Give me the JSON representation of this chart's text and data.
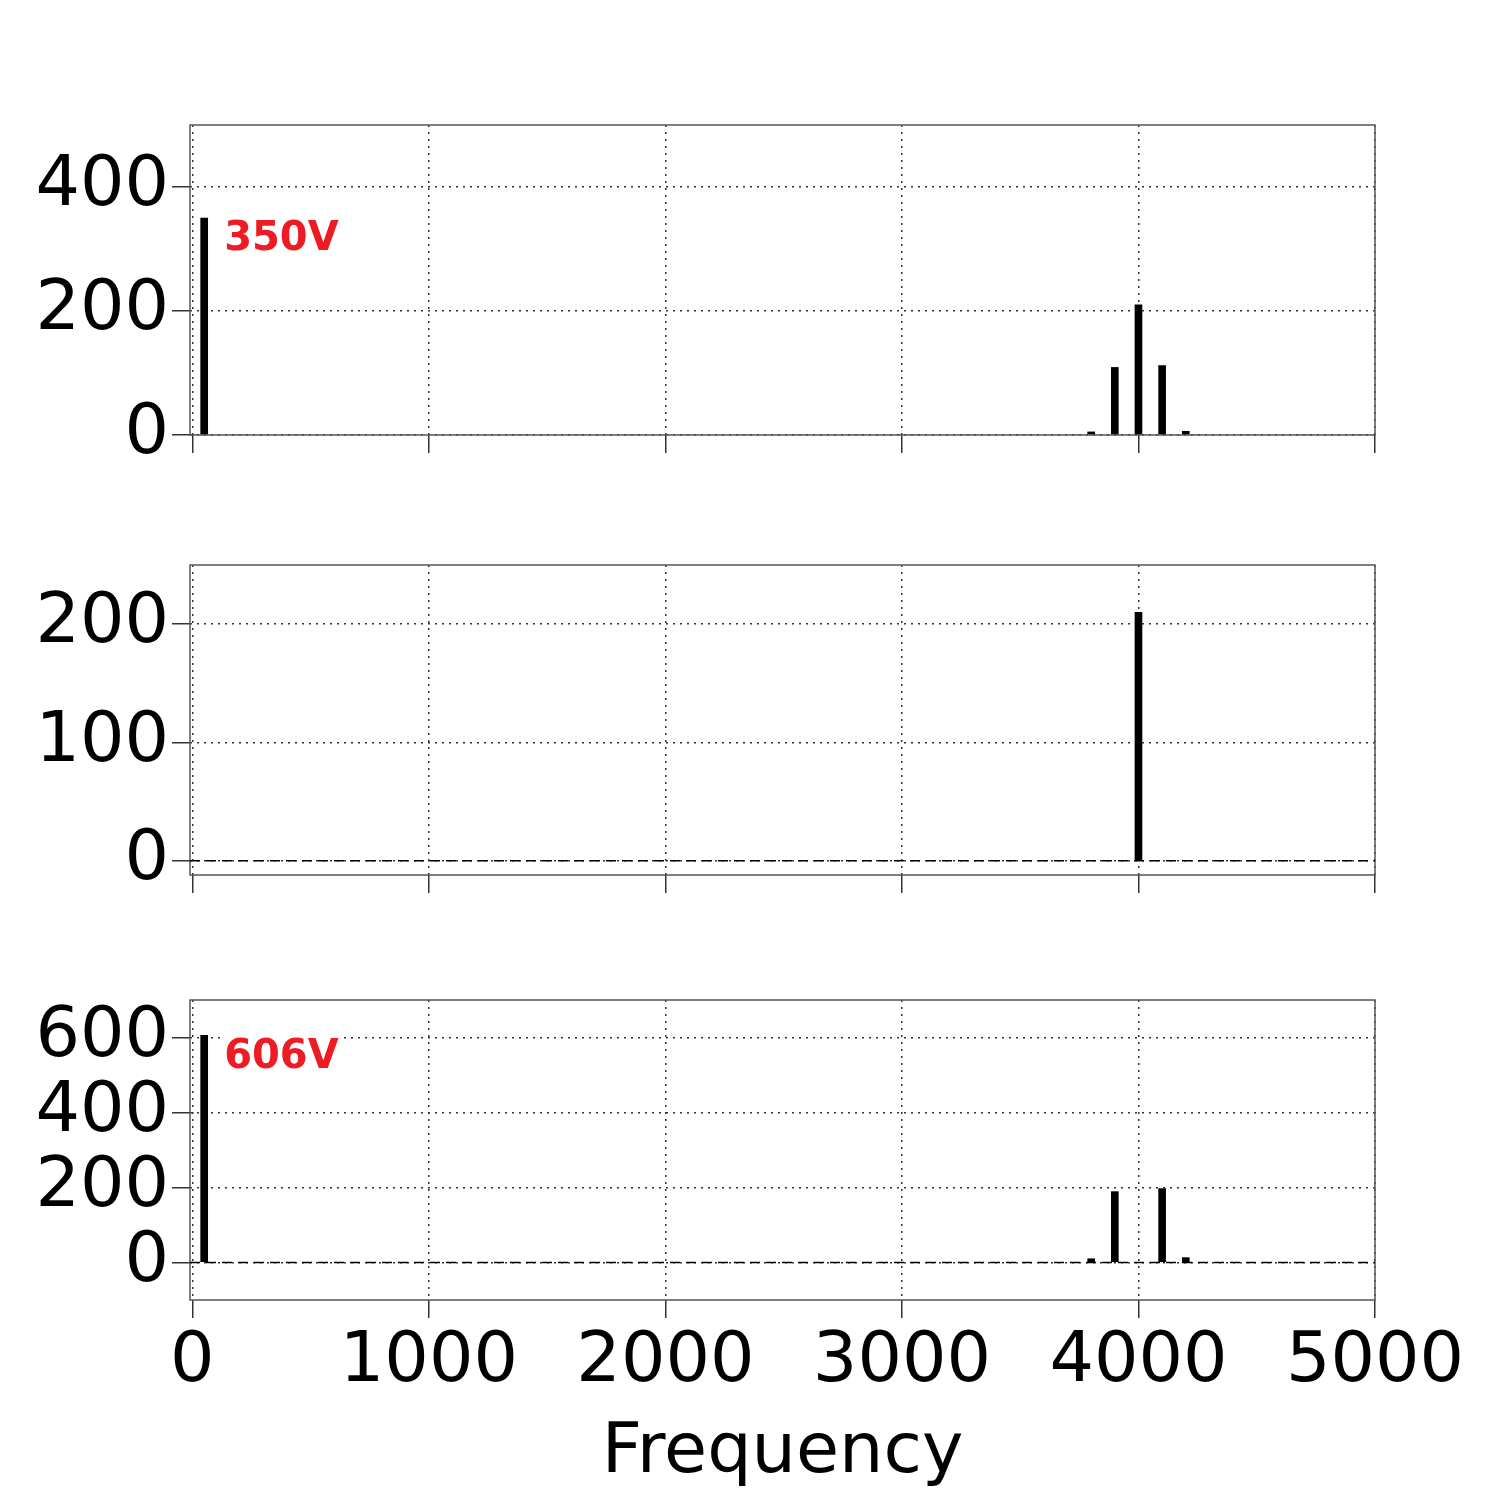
{
  "chart_data": [
    {
      "type": "bar",
      "x": [
        50,
        3800,
        3900,
        4000,
        4100,
        4200
      ],
      "values": [
        350,
        5,
        109,
        210,
        112,
        6
      ],
      "color": "#000000",
      "xlim": [
        -10,
        5000
      ],
      "xticks": [
        0,
        1000,
        2000,
        3000,
        4000,
        5000
      ],
      "ylim": [
        0,
        500
      ],
      "yticks": [
        0,
        200,
        400
      ],
      "grid": true,
      "legend": false,
      "tick_labels": "y",
      "annotations": [
        {
          "text": "350V",
          "x": 50,
          "y": 350
        }
      ]
    },
    {
      "type": "bar",
      "x": [
        4000
      ],
      "values": [
        210
      ],
      "color": "#000000",
      "xlim": [
        -10,
        5000
      ],
      "xticks": [
        0,
        1000,
        2000,
        3000,
        4000,
        5000
      ],
      "ylim": [
        -12,
        250
      ],
      "yticks": [
        0,
        100,
        200
      ],
      "grid": true,
      "legend": false,
      "tick_labels": "y",
      "ref_lines": [
        {
          "axis": "y",
          "value": 0,
          "line_style": "dashed"
        }
      ]
    },
    {
      "type": "bar",
      "x": [
        50,
        3800,
        3900,
        4000,
        4100,
        4200
      ],
      "values": [
        606,
        10,
        189,
        0,
        197,
        13
      ],
      "color": "#000000",
      "xlim": [
        -10,
        5000
      ],
      "xticks": [
        0,
        1000,
        2000,
        3000,
        4000,
        5000
      ],
      "ylim": [
        -100,
        700
      ],
      "yticks": [
        0,
        200,
        400,
        600
      ],
      "grid": true,
      "legend": false,
      "xlabel": "Frequency",
      "ref_lines": [
        {
          "axis": "y",
          "value": 0,
          "line_style": "dashed"
        }
      ],
      "annotations": [
        {
          "text": "606V",
          "x": 50,
          "y": 606
        }
      ]
    }
  ]
}
